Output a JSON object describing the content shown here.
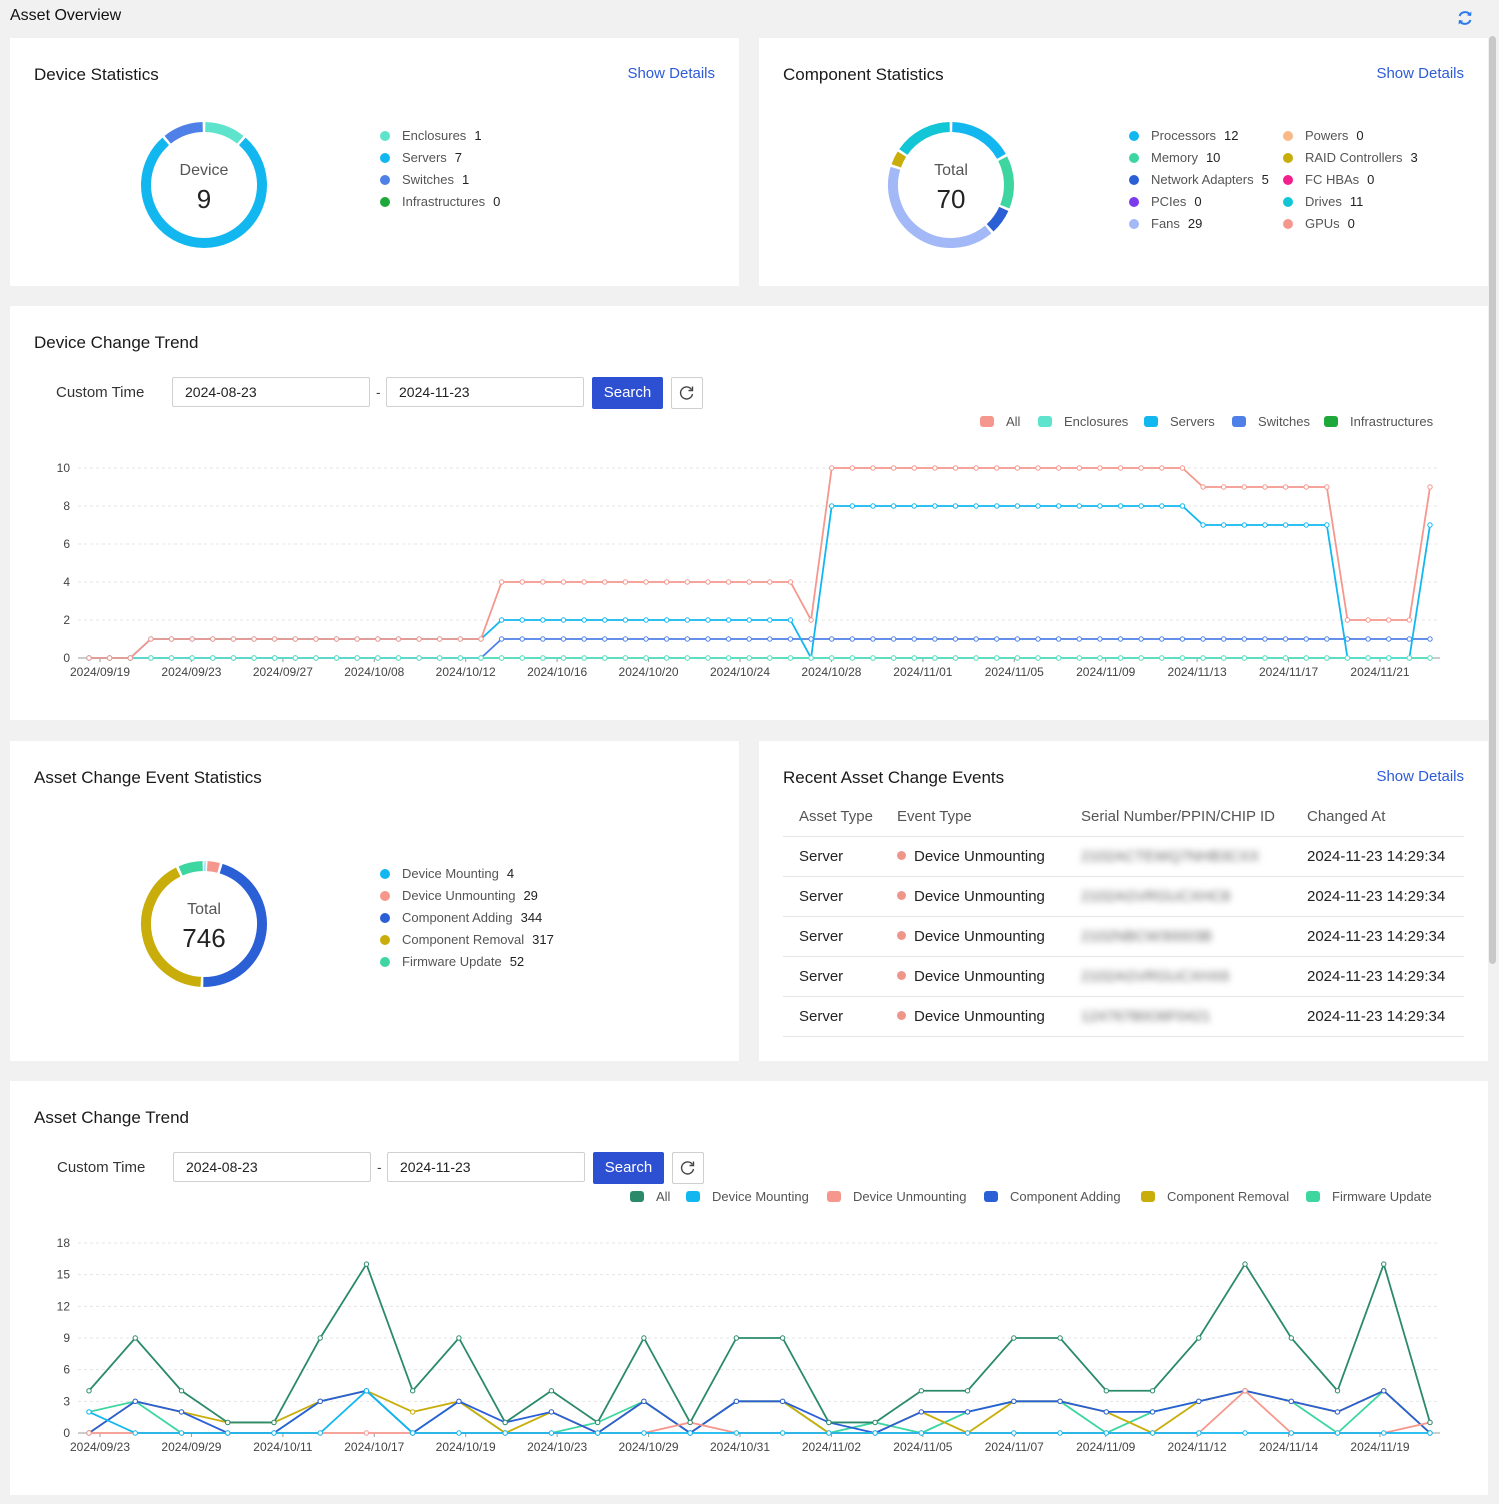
{
  "page": {
    "title": "Asset Overview"
  },
  "device_stats": {
    "title": "Device Statistics",
    "link": "Show Details",
    "center_label": "Device",
    "total": "9",
    "items": [
      {
        "name": "Enclosures",
        "value": "1",
        "color": "#5ee3cc"
      },
      {
        "name": "Servers",
        "value": "7",
        "color": "#12b7f0"
      },
      {
        "name": "Switches",
        "value": "1",
        "color": "#4e80e8"
      },
      {
        "name": "Infrastructures",
        "value": "0",
        "color": "#1fa83a"
      }
    ]
  },
  "component_stats": {
    "title": "Component Statistics",
    "link": "Show Details",
    "center_label": "Total",
    "total": "70",
    "items": [
      {
        "name": "Processors",
        "value": "12",
        "color": "#12b7f0"
      },
      {
        "name": "Memory",
        "value": "10",
        "color": "#3dd6a0"
      },
      {
        "name": "Network Adapters",
        "value": "5",
        "color": "#2a5fd6"
      },
      {
        "name": "PCIes",
        "value": "0",
        "color": "#7c3aed"
      },
      {
        "name": "Fans",
        "value": "29",
        "color": "#a3b8f7"
      },
      {
        "name": "Powers",
        "value": "0",
        "color": "#f7b987"
      },
      {
        "name": "RAID Controllers",
        "value": "3",
        "color": "#c9ad0a"
      },
      {
        "name": "FC HBAs",
        "value": "0",
        "color": "#f21f8c"
      },
      {
        "name": "Drives",
        "value": "11",
        "color": "#12c6d6"
      },
      {
        "name": "GPUs",
        "value": "0",
        "color": "#f5978d"
      }
    ]
  },
  "device_trend": {
    "title": "Device Change Trend",
    "custom_time_label": "Custom Time",
    "start_date": "2024-08-23",
    "end_date": "2024-11-23",
    "dash": "-",
    "search_label": "Search",
    "legend": [
      {
        "name": "All",
        "color": "#f5978d"
      },
      {
        "name": "Enclosures",
        "color": "#5ee3cc"
      },
      {
        "name": "Servers",
        "color": "#12b7f0"
      },
      {
        "name": "Switches",
        "color": "#4e80e8"
      },
      {
        "name": "Infrastructures",
        "color": "#1fa83a"
      }
    ]
  },
  "event_stats": {
    "title": "Asset Change Event Statistics",
    "center_label": "Total",
    "total": "746",
    "items": [
      {
        "name": "Device Mounting",
        "value": "4",
        "color": "#12b7f0"
      },
      {
        "name": "Device Unmounting",
        "value": "29",
        "color": "#f5978d"
      },
      {
        "name": "Component Adding",
        "value": "344",
        "color": "#2a5fd6"
      },
      {
        "name": "Component Removal",
        "value": "317",
        "color": "#c9ad0a"
      },
      {
        "name": "Firmware Update",
        "value": "52",
        "color": "#3dd6a0"
      }
    ]
  },
  "recent_events": {
    "title": "Recent Asset Change Events",
    "link": "Show Details",
    "columns": [
      "Asset Type",
      "Event Type",
      "Serial Number/PPIN/CHIP ID",
      "Changed At"
    ],
    "rows": [
      {
        "asset": "Server",
        "event": "Device Unmounting",
        "serial": "2102ACTEWQ7NHB3CXX",
        "time": "2024-11-23 14:29:34"
      },
      {
        "asset": "Server",
        "event": "Device Unmounting",
        "serial": "2102AGVRGUCXHC8",
        "time": "2024-11-23 14:29:34"
      },
      {
        "asset": "Server",
        "event": "Device Unmounting",
        "serial": "2102NBCW30003B",
        "time": "2024-11-23 14:29:34"
      },
      {
        "asset": "Server",
        "event": "Device Unmounting",
        "serial": "2102AGVRGUCXHX6",
        "time": "2024-11-23 14:29:34"
      },
      {
        "asset": "Server",
        "event": "Device Unmounting",
        "serial": "12476780O6F0421",
        "time": "2024-11-23 14:29:34"
      }
    ]
  },
  "asset_trend": {
    "title": "Asset Change Trend",
    "custom_time_label": "Custom Time",
    "start_date": "2024-08-23",
    "end_date": "2024-11-23",
    "dash": "-",
    "search_label": "Search",
    "legend": [
      {
        "name": "All",
        "color": "#2a8a6a"
      },
      {
        "name": "Device Mounting",
        "color": "#12b7f0"
      },
      {
        "name": "Device Unmounting",
        "color": "#f5978d"
      },
      {
        "name": "Component Adding",
        "color": "#2a5fd6"
      },
      {
        "name": "Component Removal",
        "color": "#c9ad0a"
      },
      {
        "name": "Firmware Update",
        "color": "#3dd6a0"
      }
    ]
  },
  "chart_data": [
    {
      "type": "line",
      "title": "Device Change Trend",
      "x_ticks": [
        "2024/09/19",
        "2024/09/23",
        "2024/09/27",
        "2024/10/08",
        "2024/10/12",
        "2024/10/16",
        "2024/10/20",
        "2024/10/24",
        "2024/10/28",
        "2024/11/01",
        "2024/11/05",
        "2024/11/09",
        "2024/11/13",
        "2024/11/17",
        "2024/11/21"
      ],
      "ylim": [
        0,
        10
      ],
      "y_ticks": [
        0,
        2,
        4,
        6,
        8,
        10
      ],
      "series": [
        {
          "name": "All",
          "color": "#f5978d",
          "values": [
            0,
            0,
            0,
            1,
            1,
            1,
            1,
            1,
            1,
            1,
            1,
            1,
            1,
            1,
            1,
            1,
            1,
            1,
            1,
            1,
            4,
            4,
            4,
            4,
            4,
            4,
            4,
            4,
            4,
            4,
            4,
            4,
            4,
            4,
            4,
            2,
            10,
            10,
            10,
            10,
            10,
            10,
            10,
            10,
            10,
            10,
            10,
            10,
            10,
            10,
            10,
            10,
            10,
            10,
            9,
            9,
            9,
            9,
            9,
            9,
            9,
            2,
            2,
            2,
            2,
            9
          ]
        },
        {
          "name": "Enclosures",
          "color": "#5ee3cc",
          "values": [
            0,
            0,
            0,
            0,
            0,
            0,
            0,
            0,
            0,
            0,
            0,
            0,
            0,
            0,
            0,
            0,
            0,
            0,
            0,
            0,
            0,
            0,
            0,
            0,
            0,
            0,
            0,
            0,
            0,
            0,
            0,
            0,
            0,
            0,
            0,
            0,
            0,
            0,
            0,
            0,
            0,
            0,
            0,
            0,
            0,
            0,
            0,
            0,
            0,
            0,
            0,
            0,
            0,
            0,
            0,
            0,
            0,
            0,
            0,
            0,
            0,
            0,
            0,
            0,
            0,
            0
          ]
        },
        {
          "name": "Servers",
          "color": "#12b7f0",
          "values": [
            0,
            0,
            0,
            1,
            1,
            1,
            1,
            1,
            1,
            1,
            1,
            1,
            1,
            1,
            1,
            1,
            1,
            1,
            1,
            1,
            2,
            2,
            2,
            2,
            2,
            2,
            2,
            2,
            2,
            2,
            2,
            2,
            2,
            2,
            2,
            0,
            8,
            8,
            8,
            8,
            8,
            8,
            8,
            8,
            8,
            8,
            8,
            8,
            8,
            8,
            8,
            8,
            8,
            8,
            7,
            7,
            7,
            7,
            7,
            7,
            7,
            0,
            0,
            0,
            0,
            7
          ]
        },
        {
          "name": "Switches",
          "color": "#4e80e8",
          "values": [
            0,
            0,
            0,
            0,
            0,
            0,
            0,
            0,
            0,
            0,
            0,
            0,
            0,
            0,
            0,
            0,
            0,
            0,
            0,
            0,
            1,
            1,
            1,
            1,
            1,
            1,
            1,
            1,
            1,
            1,
            1,
            1,
            1,
            1,
            1,
            1,
            1,
            1,
            1,
            1,
            1,
            1,
            1,
            1,
            1,
            1,
            1,
            1,
            1,
            1,
            1,
            1,
            1,
            1,
            1,
            1,
            1,
            1,
            1,
            1,
            1,
            1,
            1,
            1,
            1,
            1
          ]
        },
        {
          "name": "Infrastructures",
          "color": "#1fa83a",
          "values": [
            0,
            0,
            0,
            0,
            0,
            0,
            0,
            0,
            0,
            0,
            0,
            0,
            0,
            0,
            0,
            0,
            0,
            0,
            0,
            0,
            0,
            0,
            0,
            0,
            0,
            0,
            0,
            0,
            0,
            0,
            0,
            0,
            0,
            0,
            0,
            0,
            0,
            0,
            0,
            0,
            0,
            0,
            0,
            0,
            0,
            0,
            0,
            0,
            0,
            0,
            0,
            0,
            0,
            0,
            0,
            0,
            0,
            0,
            0,
            0,
            0,
            0,
            0,
            0,
            0,
            0
          ]
        }
      ]
    },
    {
      "type": "line",
      "title": "Asset Change Trend",
      "x_ticks": [
        "2024/09/23",
        "2024/09/29",
        "2024/10/11",
        "2024/10/17",
        "2024/10/19",
        "2024/10/23",
        "2024/10/29",
        "2024/10/31",
        "2024/11/02",
        "2024/11/05",
        "2024/11/07",
        "2024/11/09",
        "2024/11/12",
        "2024/11/14",
        "2024/11/19"
      ],
      "ylim": [
        0,
        18
      ],
      "y_ticks": [
        0,
        3,
        6,
        9,
        12,
        15,
        18
      ],
      "series": [
        {
          "name": "All",
          "color": "#2a8a6a",
          "values": [
            4,
            9,
            4,
            1,
            1,
            9,
            16,
            4,
            9,
            1,
            4,
            1,
            9,
            1,
            9,
            9,
            1,
            1,
            4,
            4,
            9,
            9,
            4,
            4,
            9,
            16,
            9,
            4,
            16,
            1
          ]
        },
        {
          "name": "Device Mounting",
          "color": "#12b7f0",
          "values": [
            2,
            0,
            0,
            0,
            0,
            0,
            4,
            0,
            0,
            0,
            0,
            0,
            0,
            0,
            0,
            0,
            0,
            0,
            0,
            0,
            0,
            0,
            0,
            0,
            0,
            0,
            0,
            0,
            0,
            0
          ]
        },
        {
          "name": "Device Unmounting",
          "color": "#f5978d",
          "values": [
            0,
            0,
            0,
            0,
            0,
            0,
            0,
            0,
            0,
            0,
            0,
            0,
            0,
            1,
            0,
            0,
            0,
            0,
            0,
            0,
            0,
            0,
            0,
            0,
            0,
            4,
            0,
            0,
            0,
            1
          ]
        },
        {
          "name": "Component Adding",
          "color": "#2a5fd6",
          "values": [
            0,
            3,
            2,
            0,
            0,
            3,
            4,
            0,
            3,
            1,
            2,
            0,
            3,
            0,
            3,
            3,
            1,
            0,
            2,
            2,
            3,
            3,
            2,
            2,
            3,
            4,
            3,
            2,
            4,
            0
          ]
        },
        {
          "name": "Component Removal",
          "color": "#c9ad0a",
          "values": [
            0,
            3,
            2,
            1,
            1,
            3,
            4,
            2,
            3,
            0,
            2,
            0,
            3,
            0,
            3,
            3,
            0,
            0,
            2,
            0,
            3,
            3,
            2,
            0,
            3,
            4,
            3,
            2,
            4,
            0
          ]
        },
        {
          "name": "Firmware Update",
          "color": "#3dd6a0",
          "values": [
            2,
            3,
            0,
            0,
            0,
            3,
            4,
            0,
            3,
            0,
            0,
            1,
            3,
            0,
            3,
            3,
            0,
            1,
            0,
            2,
            3,
            3,
            0,
            2,
            3,
            4,
            3,
            0,
            4,
            0
          ]
        }
      ]
    }
  ]
}
